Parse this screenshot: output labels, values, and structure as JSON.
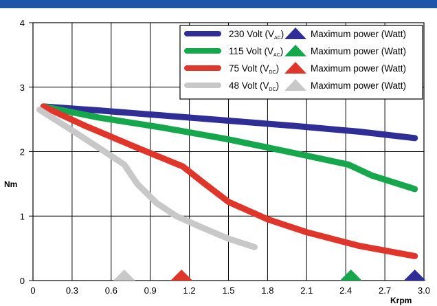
{
  "chart_data": {
    "type": "line",
    "title": "",
    "xlabel": "Krpm",
    "ylabel": "Nm",
    "xlim": [
      0,
      3.0
    ],
    "ylim": [
      0,
      4
    ],
    "x_ticks": [
      "0",
      "0.3",
      "0.6",
      "0.9",
      "1.2",
      "1.5",
      "1.8",
      "2.1",
      "2.4",
      "2.7",
      "3.0"
    ],
    "y_ticks": [
      "0",
      "1",
      "2",
      "3",
      "4"
    ],
    "grid": true,
    "legend_position": "top-right",
    "header_color": "#1f56a8",
    "max_power_label": "Maximum power (Watt)",
    "series": [
      {
        "name_main": "230 Volt (V",
        "name_sub": "AC",
        "name_end": ")",
        "color": "#2e2e96",
        "points": [
          [
            0.08,
            2.7
          ],
          [
            0.5,
            2.64
          ],
          [
            1.0,
            2.56
          ],
          [
            1.5,
            2.48
          ],
          [
            2.0,
            2.4
          ],
          [
            2.5,
            2.31
          ],
          [
            2.93,
            2.21
          ]
        ],
        "max_power_x": 2.93
      },
      {
        "name_main": "115 Volt (V",
        "name_sub": "AC",
        "name_end": ")",
        "color": "#16a64c",
        "points": [
          [
            0.08,
            2.7
          ],
          [
            0.5,
            2.53
          ],
          [
            1.0,
            2.37
          ],
          [
            1.5,
            2.19
          ],
          [
            2.0,
            1.98
          ],
          [
            2.42,
            1.8
          ],
          [
            2.6,
            1.63
          ],
          [
            2.93,
            1.42
          ]
        ],
        "max_power_x": 2.44
      },
      {
        "name_main": "75 Volt (V",
        "name_sub": "DC",
        "name_end": ")",
        "color": "#e0352b",
        "points": [
          [
            0.08,
            2.7
          ],
          [
            0.4,
            2.4
          ],
          [
            0.8,
            2.06
          ],
          [
            1.15,
            1.77
          ],
          [
            1.3,
            1.53
          ],
          [
            1.5,
            1.22
          ],
          [
            1.8,
            0.95
          ],
          [
            2.1,
            0.75
          ],
          [
            2.5,
            0.54
          ],
          [
            2.93,
            0.38
          ]
        ],
        "max_power_x": 1.14
      },
      {
        "name_main": "48 Volt (V",
        "name_sub": "DC",
        "name_end": ")",
        "color": "#c8c8c8",
        "points": [
          [
            0.05,
            2.65
          ],
          [
            0.3,
            2.33
          ],
          [
            0.55,
            2.0
          ],
          [
            0.7,
            1.8
          ],
          [
            0.8,
            1.5
          ],
          [
            0.95,
            1.2
          ],
          [
            1.1,
            1.0
          ],
          [
            1.3,
            0.82
          ],
          [
            1.5,
            0.65
          ],
          [
            1.7,
            0.52
          ]
        ],
        "max_power_x": 0.7
      }
    ]
  }
}
